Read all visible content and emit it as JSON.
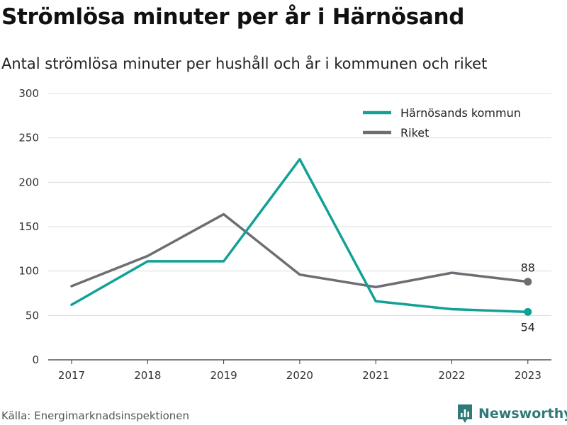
{
  "header": {
    "title": "Strömlösa minuter per år i Härnösand",
    "subtitle": "Antal strömlösa minuter per hushåll och år i kommunen och riket"
  },
  "footer": {
    "source": "Källa: Energimarknadsinspektionen",
    "brand": "Newsworthy",
    "brand_icon": "newsworthy-logo-icon"
  },
  "chart_data": {
    "type": "line",
    "x": [
      "2017",
      "2018",
      "2019",
      "2020",
      "2021",
      "2022",
      "2023"
    ],
    "series": [
      {
        "name": "Härnösands kommun",
        "color": "#11a197",
        "values": [
          62,
          111,
          111,
          226,
          66,
          57,
          54
        ]
      },
      {
        "name": "Riket",
        "color": "#6d6d73",
        "values": [
          83,
          117,
          164,
          96,
          82,
          98,
          88
        ]
      }
    ],
    "yticks": [
      0,
      50,
      100,
      150,
      200,
      250,
      300
    ],
    "ylim": [
      0,
      300
    ],
    "grid": true,
    "legend_position": "top-right",
    "end_labels": [
      {
        "series": "Riket",
        "label": "88"
      },
      {
        "series": "Härnösands kommun",
        "label": "54"
      }
    ]
  }
}
